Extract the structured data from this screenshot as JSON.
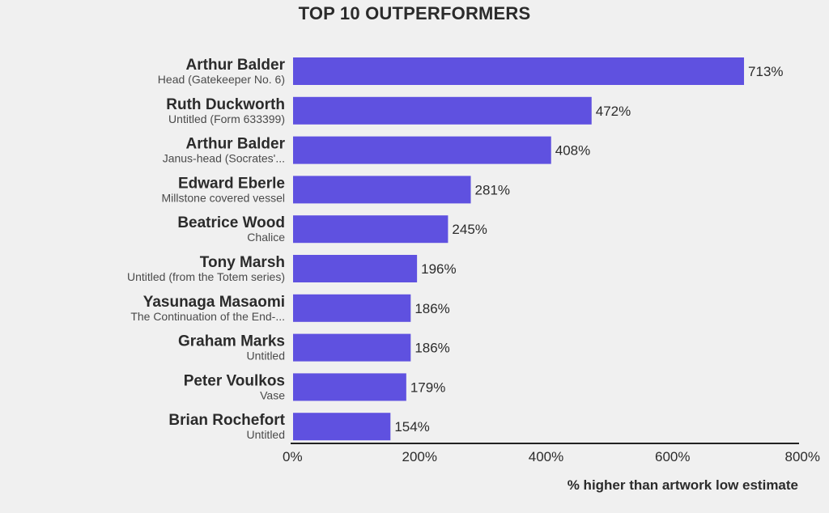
{
  "chart_data": {
    "type": "bar",
    "orientation": "horizontal",
    "title": "TOP 10 OUTPERFORMERS",
    "xlabel": "% higher than artwork low estimate",
    "xlim": [
      0,
      800
    ],
    "xticks": [
      "0%",
      "200%",
      "400%",
      "600%",
      "800%"
    ],
    "value_format": "percent",
    "bar_color": "#5f51e0",
    "grid": false,
    "categories": [
      {
        "artist": "Arthur Balder",
        "work": "Head (Gatekeeper No. 6)"
      },
      {
        "artist": "Ruth Duckworth",
        "work": "Untitled (Form 633399)"
      },
      {
        "artist": "Arthur Balder",
        "work": "Janus-head (Socrates'..."
      },
      {
        "artist": "Edward Eberle",
        "work": "Millstone covered vessel"
      },
      {
        "artist": "Beatrice Wood",
        "work": "Chalice"
      },
      {
        "artist": "Tony Marsh",
        "work": "Untitled (from the Totem series)"
      },
      {
        "artist": "Yasunaga Masaomi",
        "work": "The Continuation of the End-..."
      },
      {
        "artist": "Graham Marks",
        "work": "Untitled"
      },
      {
        "artist": "Peter Voulkos",
        "work": "Vase"
      },
      {
        "artist": "Brian Rochefort",
        "work": "Untitled"
      }
    ],
    "values": [
      713,
      472,
      408,
      281,
      245,
      196,
      186,
      186,
      179,
      154
    ],
    "value_labels": [
      "713%",
      "472%",
      "408%",
      "281%",
      "245%",
      "196%",
      "186%",
      "186%",
      "179%",
      "154%"
    ]
  }
}
